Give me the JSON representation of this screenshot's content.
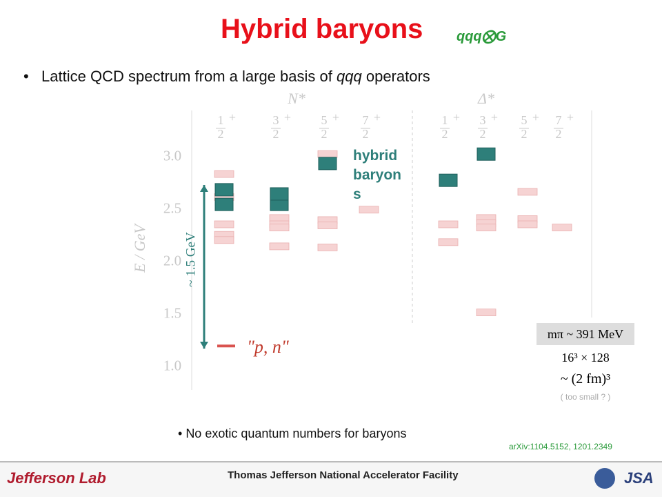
{
  "header": {
    "title": "Hybrid baryons",
    "subtitle": "qqq⨂G"
  },
  "bullet": {
    "before": "Lattice QCD spectrum from a large basis of",
    "em": "qqq",
    "after": "operators"
  },
  "chart": {
    "ylabel": "E / GeV",
    "ylim": [
      0.8,
      3.4
    ],
    "yticks": [
      {
        "value": 1,
        "label": "1.0"
      },
      {
        "value": 1.5,
        "label": "1.5"
      },
      {
        "value": 2,
        "label": "2.0"
      },
      {
        "value": 2.5,
        "label": "2.5"
      },
      {
        "value": 3,
        "label": "3.0"
      }
    ],
    "groups": [
      "N*",
      "Δ*"
    ],
    "level_color": "#f6d3d3",
    "hybrid_color": "#2e7f7a",
    "columns": [
      {
        "num": "1",
        "den": "2",
        "parity": "+",
        "levels": [
          2.84,
          2.62,
          2.36,
          2.26,
          2.21
        ],
        "hybrid": [
          2.55,
          2.69
        ]
      },
      {
        "num": "3",
        "den": "2",
        "parity": "+",
        "levels": [
          2.42,
          2.36,
          2.33,
          2.15
        ],
        "hybrid": [
          2.55,
          2.65
        ]
      },
      {
        "num": "5",
        "den": "2",
        "parity": "+",
        "levels": [
          3.03,
          2.4,
          2.35,
          2.14
        ],
        "hybrid": [
          2.94
        ]
      },
      {
        "num": "7",
        "den": "2",
        "parity": "+",
        "levels": [
          2.5
        ],
        "hybrid": []
      },
      {
        "num": "1",
        "den": "2",
        "parity": "+",
        "levels": [
          2.36,
          2.19
        ],
        "hybrid": [
          2.78
        ]
      },
      {
        "num": "3",
        "den": "2",
        "parity": "+",
        "levels": [
          2.42,
          2.37,
          2.33,
          1.52
        ],
        "hybrid": [
          3.03
        ]
      },
      {
        "num": "5",
        "den": "2",
        "parity": "+",
        "levels": [
          2.67,
          2.41,
          2.36
        ],
        "hybrid": []
      },
      {
        "num": "7",
        "den": "2",
        "parity": "+",
        "levels": [
          2.33
        ],
        "hybrid": []
      }
    ],
    "nucleon": {
      "label": "\"p, n\"",
      "E": 1.2
    },
    "hybrid_label": "hybrid baryons",
    "gap_label": "~ 1.5 GeV"
  },
  "params": {
    "mpi": "mπ ~ 391 MeV",
    "volume": "16³ × 128",
    "size": "~ (2 fm)³",
    "note": "( too small ? )"
  },
  "bullet2": "No exotic quantum numbers for baryons",
  "reference": "arXiv:1104.5152, 1201.2349",
  "footer": {
    "lab": "Jefferson Lab",
    "facility": "Thomas Jefferson National Accelerator Facility",
    "jsa": "JSA"
  }
}
